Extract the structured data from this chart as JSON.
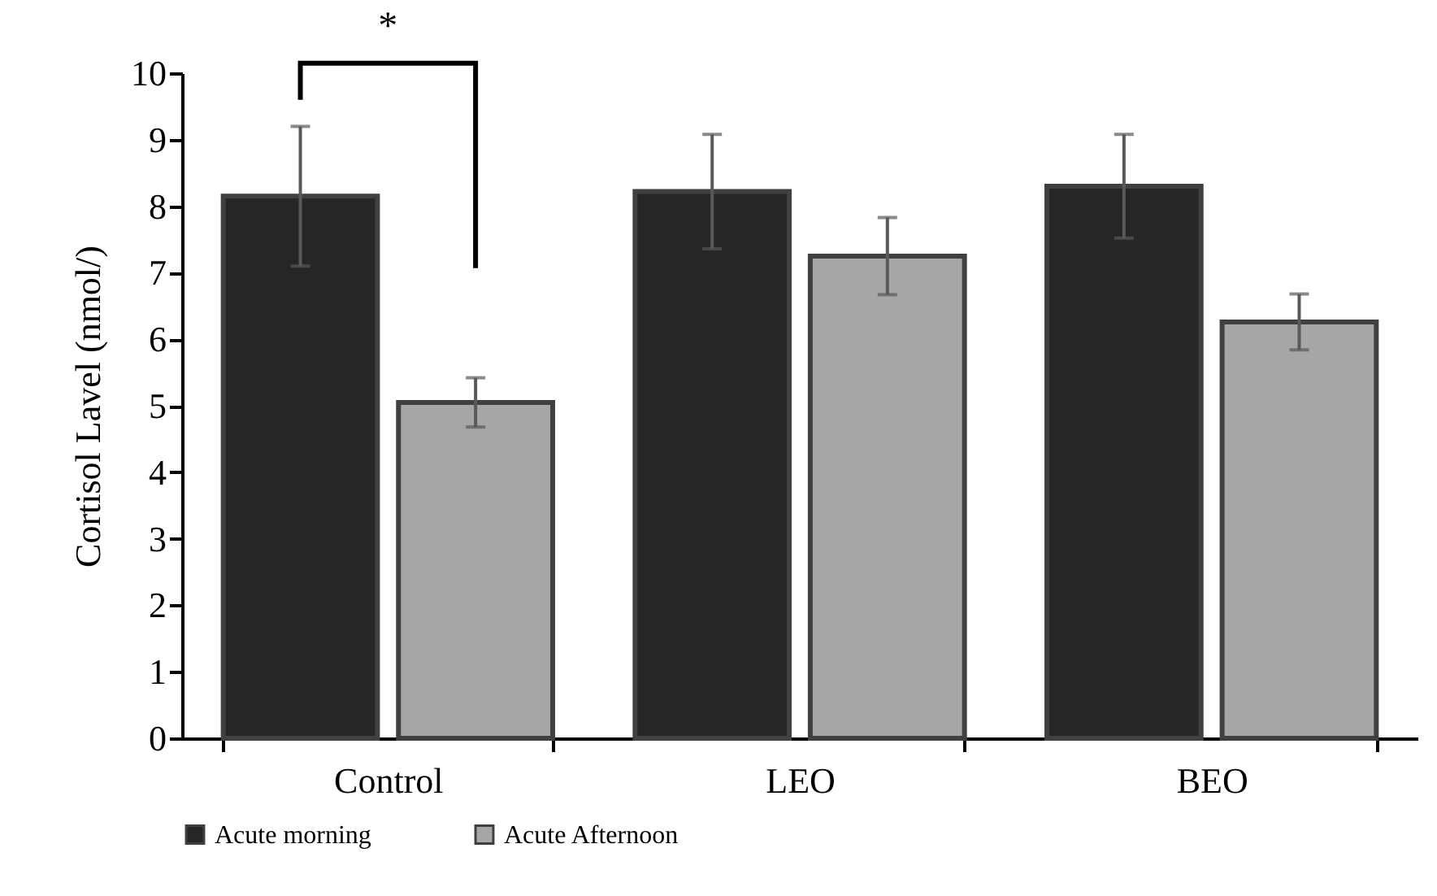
{
  "chart_data": {
    "type": "bar",
    "ylabel": "Cortisol Lavel (nmol/)",
    "categories": [
      "Control",
      "LEO",
      "BEO"
    ],
    "series": [
      {
        "name": "Acute morning",
        "color": "#262626",
        "values": [
          8.15,
          8.22,
          8.3
        ],
        "errors": [
          1.05,
          0.86,
          0.78
        ]
      },
      {
        "name": "Acute Afternoon",
        "color": "#a6a6a6",
        "values": [
          5.05,
          7.25,
          6.26
        ],
        "errors": [
          0.37,
          0.58,
          0.42
        ]
      }
    ],
    "ylim": [
      0,
      10
    ],
    "yticks": [
      0,
      1,
      2,
      3,
      4,
      5,
      6,
      7,
      8,
      9,
      10
    ],
    "grid": false,
    "legend": "bottom",
    "annotations": [
      "*"
    ]
  }
}
